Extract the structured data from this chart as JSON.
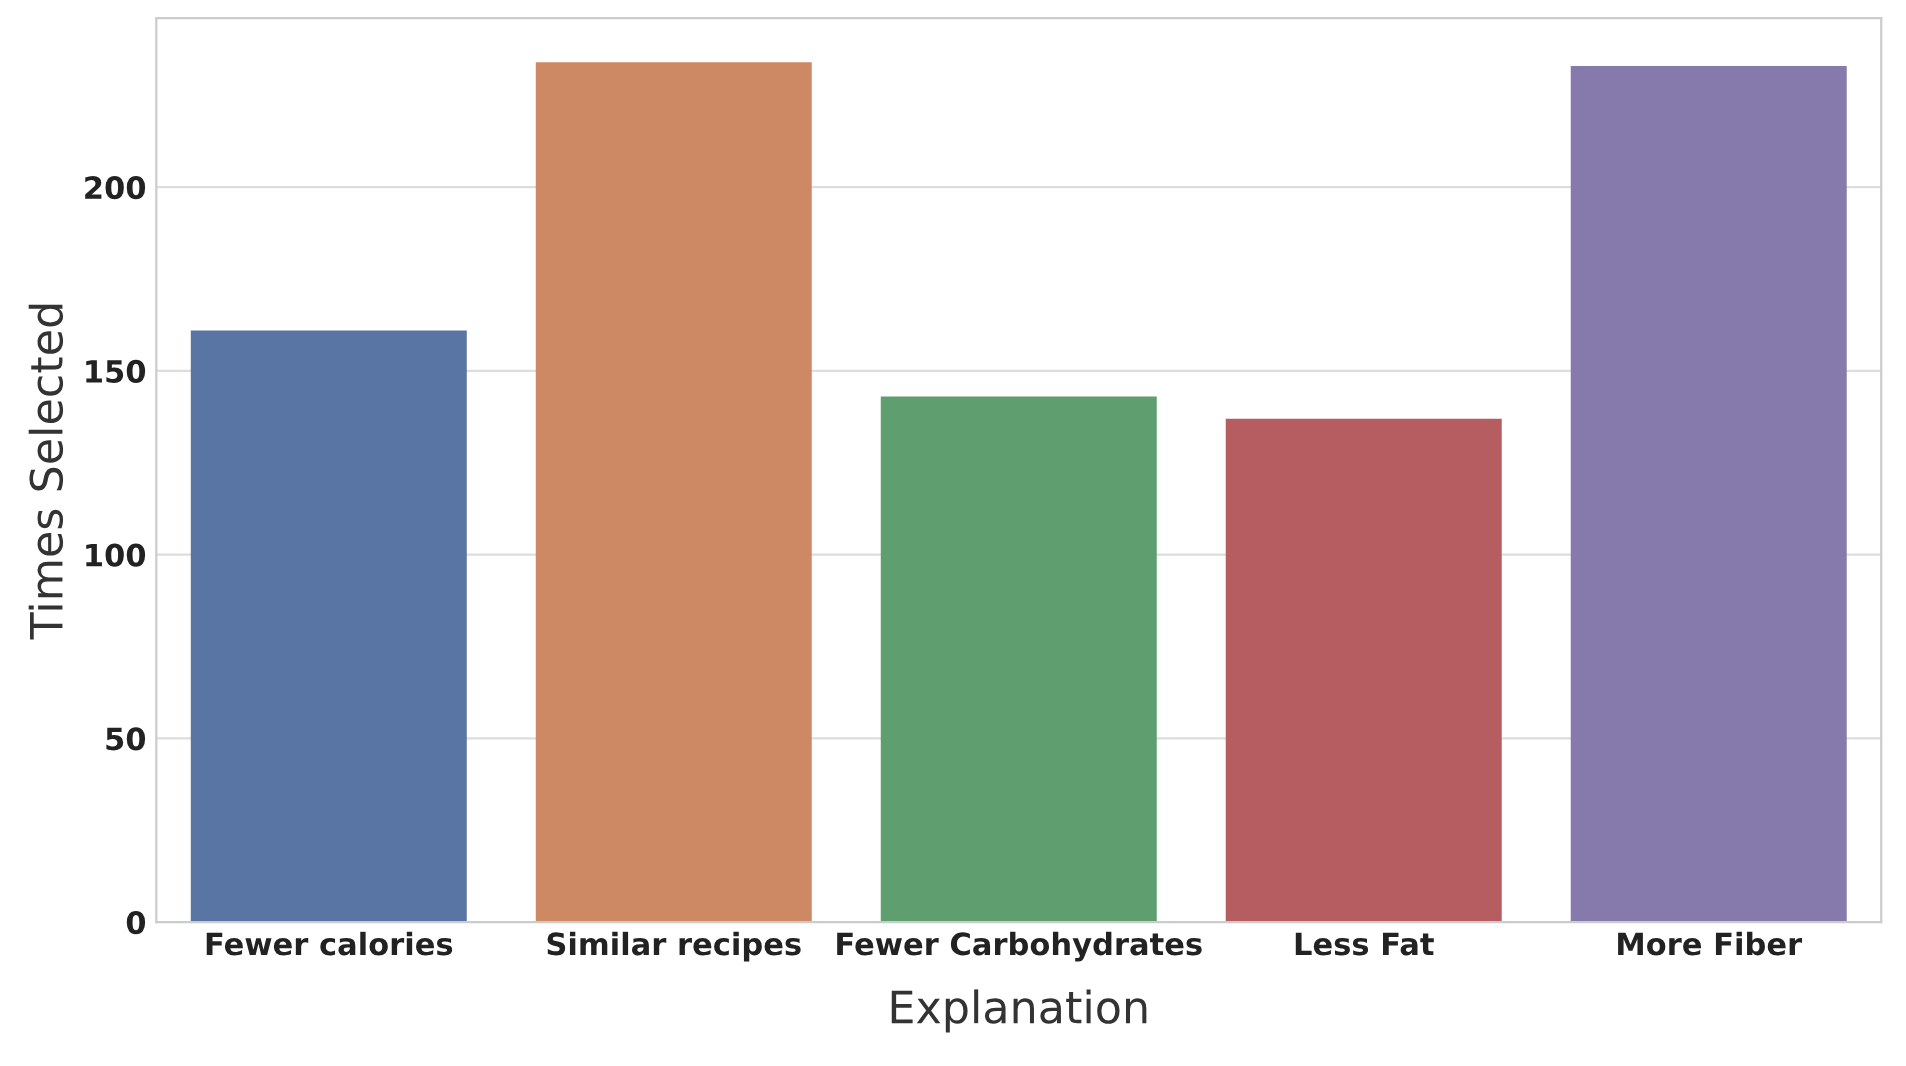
{
  "chart_data": {
    "type": "bar",
    "xlabel": "Explanation",
    "ylabel": "Times Selected",
    "categories": [
      "Fewer calories",
      "Similar recipes",
      "Fewer Carbohydrates",
      "Less Fat",
      "More Fiber"
    ],
    "values": [
      161,
      234,
      143,
      137,
      233
    ],
    "colors": [
      "#5975a4",
      "#cc8963",
      "#5f9e6e",
      "#b55d60",
      "#857aab"
    ],
    "ylim": [
      0,
      246
    ],
    "yticks": [
      0,
      50,
      100,
      150,
      200
    ],
    "grid": "y"
  }
}
